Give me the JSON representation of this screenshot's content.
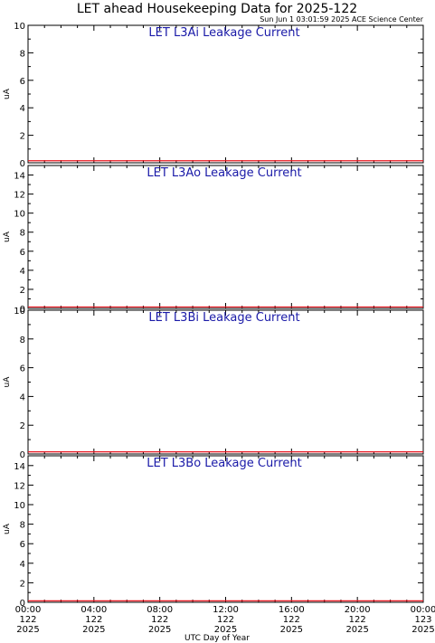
{
  "title": "LET ahead Housekeeping Data for 2025-122",
  "subtitle": "Sun Jun  1 03:01:59 2025 ACE Science Center",
  "x_axis": {
    "label": "UTC Day of Year",
    "ticks": [
      {
        "hour": 0,
        "time": "00:00",
        "day": "122",
        "year": "2025"
      },
      {
        "hour": 4,
        "time": "04:00",
        "day": "122",
        "year": "2025"
      },
      {
        "hour": 8,
        "time": "08:00",
        "day": "122",
        "year": "2025"
      },
      {
        "hour": 12,
        "time": "12:00",
        "day": "122",
        "year": "2025"
      },
      {
        "hour": 16,
        "time": "16:00",
        "day": "122",
        "year": "2025"
      },
      {
        "hour": 20,
        "time": "20:00",
        "day": "122",
        "year": "2025"
      },
      {
        "hour": 24,
        "time": "00:00",
        "day": "123",
        "year": "2025"
      }
    ]
  },
  "colors": {
    "series": "#e8141e",
    "panel_title": "#1a1aa8",
    "axes": "#000000"
  },
  "chart_data": [
    {
      "type": "line",
      "title": "LET L3Ai Leakage Current",
      "ylabel": "uA",
      "xlim": [
        0,
        24
      ],
      "ylim": [
        0,
        10
      ],
      "y_ticks": [
        0,
        2,
        4,
        6,
        8,
        10
      ],
      "series": [
        {
          "x": [
            0,
            24
          ],
          "values": [
            0.15,
            0.15
          ]
        }
      ]
    },
    {
      "type": "line",
      "title": "LET L3Ao Leakage Current",
      "ylabel": "uA",
      "xlim": [
        0,
        24
      ],
      "ylim": [
        0,
        15
      ],
      "y_ticks": [
        0,
        2,
        4,
        6,
        8,
        10,
        12,
        14
      ],
      "series": [
        {
          "x": [
            0,
            24
          ],
          "values": [
            0.15,
            0.15
          ]
        }
      ]
    },
    {
      "type": "line",
      "title": "LET L3Bi Leakage Current",
      "ylabel": "uA",
      "xlim": [
        0,
        24
      ],
      "ylim": [
        0,
        10
      ],
      "y_ticks": [
        0,
        2,
        4,
        6,
        8,
        10
      ],
      "series": [
        {
          "x": [
            0,
            24
          ],
          "values": [
            0.15,
            0.15
          ]
        }
      ]
    },
    {
      "type": "line",
      "title": "LET L3Bo Leakage Current",
      "ylabel": "uA",
      "xlim": [
        0,
        24
      ],
      "ylim": [
        0,
        15
      ],
      "y_ticks": [
        0,
        2,
        4,
        6,
        8,
        10,
        12,
        14
      ],
      "series": [
        {
          "x": [
            0,
            24
          ],
          "values": [
            0.15,
            0.15
          ]
        }
      ]
    }
  ]
}
